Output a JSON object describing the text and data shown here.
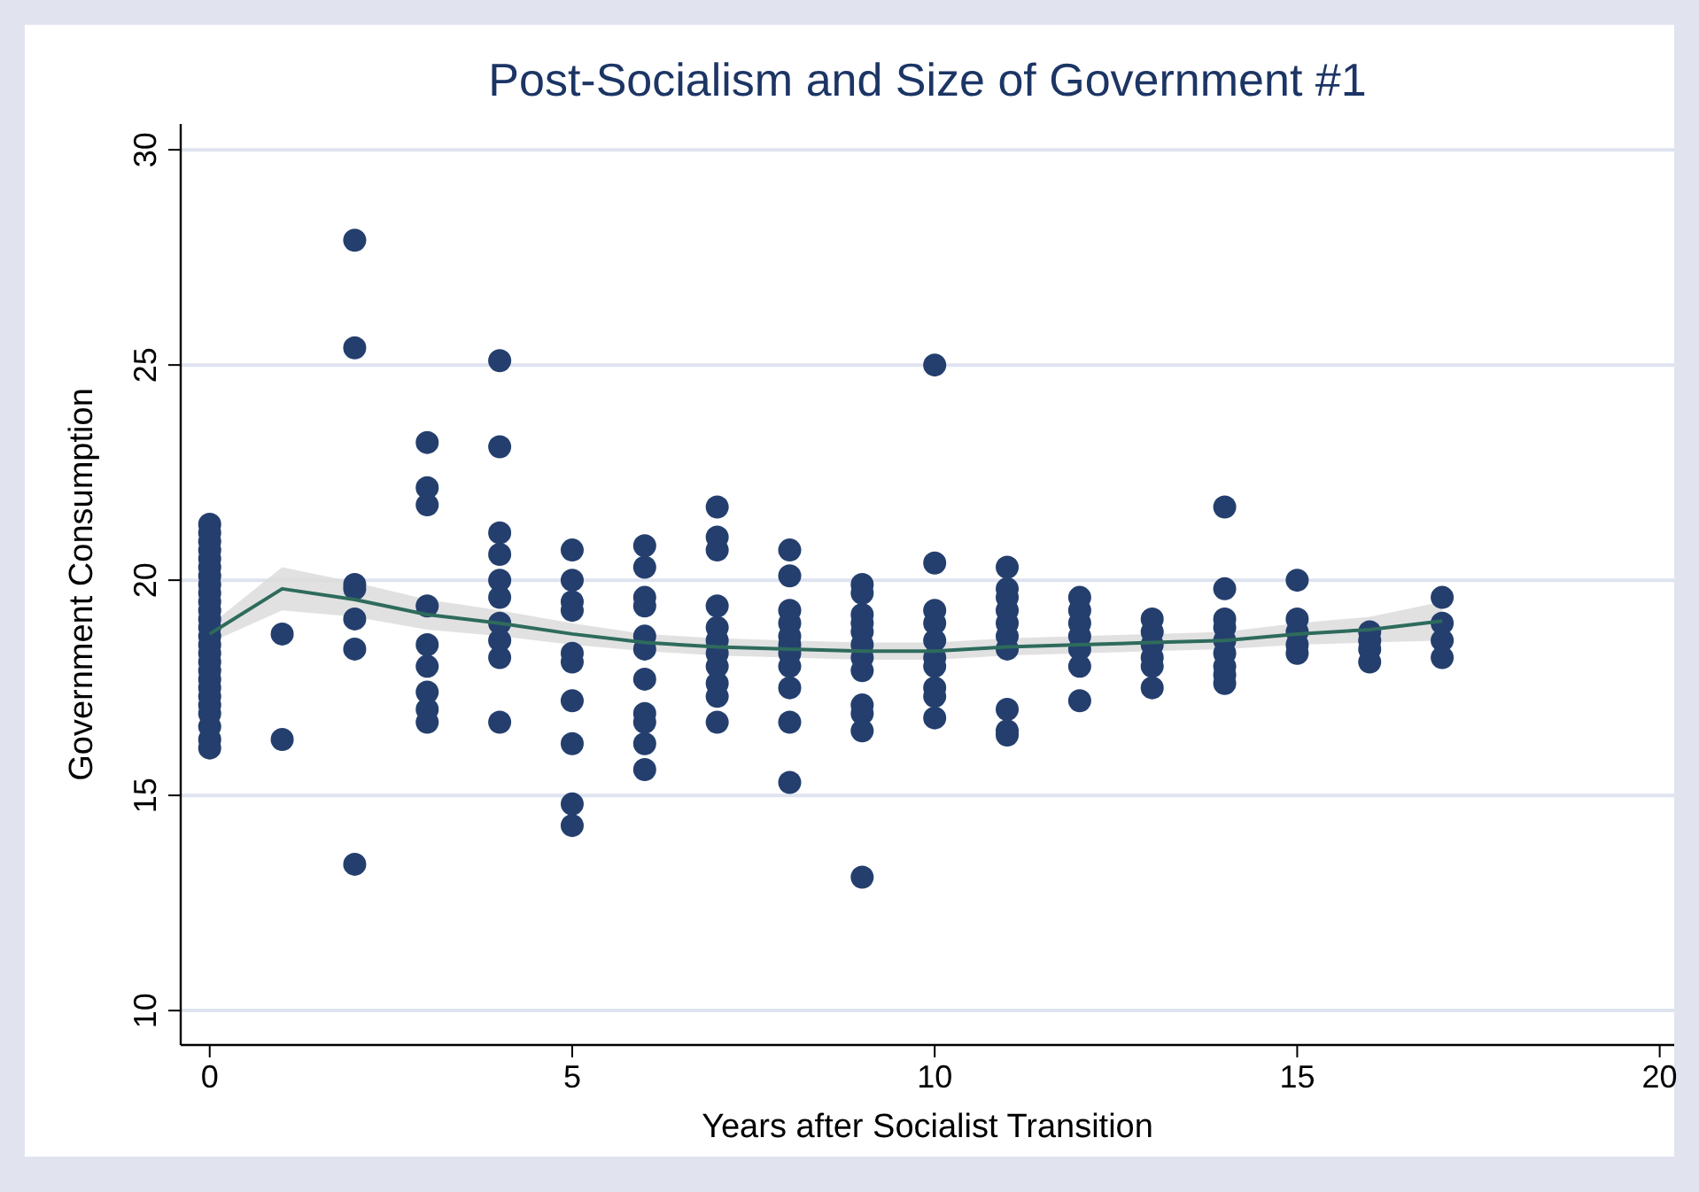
{
  "chart_data": {
    "type": "scatter",
    "title": "Post-Socialism and Size of Government #1",
    "xlabel": "Years after Socialist Transition",
    "ylabel": "Government Consumption",
    "xlim": [
      -0.4,
      20.2
    ],
    "xticks": [
      0,
      5,
      10,
      15,
      20
    ],
    "ylim": [
      9.2,
      30.6
    ],
    "yticks": [
      10,
      15,
      20,
      25,
      30
    ],
    "grid": "y",
    "series": [
      {
        "color": "#243f6e",
        "marker": "circle",
        "x": [
          0,
          0,
          0,
          0,
          0,
          0,
          0,
          0,
          0,
          0,
          0,
          0,
          0,
          0,
          0,
          0,
          0,
          0,
          0,
          0,
          0,
          0,
          0,
          0,
          0,
          0,
          1,
          1,
          2,
          2,
          2,
          2,
          2,
          2,
          2,
          3,
          3,
          3,
          3,
          3,
          3,
          3,
          3,
          3,
          4,
          4,
          4,
          4,
          4,
          4,
          4,
          4,
          4,
          4,
          5,
          5,
          5,
          5,
          5,
          5,
          5,
          5,
          5,
          5,
          6,
          6,
          6,
          6,
          6,
          6,
          6,
          6,
          6,
          6,
          6,
          7,
          7,
          7,
          7,
          7,
          7,
          7,
          7,
          7,
          7,
          7,
          8,
          8,
          8,
          8,
          8,
          8,
          8,
          8,
          8,
          8,
          8,
          9,
          9,
          9,
          9,
          9,
          9,
          9,
          9,
          9,
          9,
          9,
          9,
          10,
          10,
          10,
          10,
          10,
          10,
          10,
          10,
          10,
          10,
          11,
          11,
          11,
          11,
          11,
          11,
          11,
          11,
          11,
          11,
          12,
          12,
          12,
          12,
          12,
          12,
          12,
          13,
          13,
          13,
          13,
          13,
          13,
          14,
          14,
          14,
          14,
          14,
          14,
          14,
          14,
          14,
          15,
          15,
          15,
          15,
          15,
          16,
          16,
          16,
          16,
          17,
          17,
          17,
          17
        ],
        "values": [
          21.3,
          21.1,
          20.9,
          20.7,
          20.5,
          20.3,
          20.1,
          19.9,
          19.7,
          19.5,
          19.3,
          19.1,
          18.9,
          18.7,
          18.5,
          18.3,
          18.1,
          17.9,
          17.7,
          17.5,
          17.3,
          17.1,
          16.9,
          16.6,
          16.3,
          16.1,
          18.75,
          16.3,
          27.9,
          25.4,
          19.9,
          19.8,
          19.1,
          18.4,
          13.4,
          23.2,
          22.15,
          21.75,
          19.4,
          18.5,
          18.0,
          17.4,
          17.0,
          16.7,
          25.1,
          23.1,
          21.1,
          20.6,
          20.0,
          19.6,
          19.0,
          18.6,
          18.2,
          16.7,
          20.7,
          20.0,
          19.5,
          19.3,
          18.3,
          18.1,
          17.2,
          16.2,
          14.8,
          14.3,
          20.8,
          20.3,
          19.6,
          19.4,
          18.7,
          18.4,
          17.7,
          16.9,
          16.7,
          16.2,
          15.6,
          21.7,
          21.0,
          20.7,
          19.4,
          18.9,
          18.6,
          18.3,
          18.0,
          17.6,
          17.3,
          16.7,
          20.7,
          20.1,
          19.3,
          19.0,
          18.7,
          18.5,
          18.3,
          18.0,
          17.5,
          16.7,
          15.3,
          19.9,
          19.7,
          19.2,
          19.0,
          18.8,
          18.5,
          18.2,
          17.9,
          17.1,
          16.9,
          16.5,
          13.1,
          25.0,
          20.4,
          19.3,
          19.0,
          18.6,
          18.2,
          18.0,
          17.5,
          17.3,
          16.8,
          20.3,
          19.8,
          19.6,
          19.3,
          19.0,
          18.7,
          18.4,
          17.0,
          16.5,
          16.4,
          19.6,
          19.3,
          19.0,
          18.7,
          18.4,
          18.0,
          17.2,
          19.1,
          18.8,
          18.5,
          18.2,
          18.0,
          17.5,
          21.7,
          19.8,
          19.1,
          18.9,
          18.6,
          18.3,
          18.0,
          17.8,
          17.6,
          20.0,
          19.1,
          18.8,
          18.5,
          18.3,
          18.8,
          18.6,
          18.4,
          18.1,
          19.6,
          19.0,
          18.6,
          18.2
        ]
      },
      {
        "type": "line",
        "color": "#2e6b5c",
        "marker": "none",
        "line_style": "solid",
        "x": [
          0,
          1,
          2,
          3,
          4,
          5,
          6,
          7,
          8,
          9,
          10,
          11,
          12,
          13,
          14,
          15,
          16,
          17
        ],
        "values": [
          18.75,
          19.8,
          19.55,
          19.2,
          19.0,
          18.75,
          18.55,
          18.45,
          18.4,
          18.35,
          18.35,
          18.45,
          18.5,
          18.55,
          18.6,
          18.75,
          18.85,
          19.05
        ],
        "lower": [
          18.55,
          19.3,
          19.15,
          18.85,
          18.7,
          18.5,
          18.35,
          18.25,
          18.2,
          18.15,
          18.15,
          18.25,
          18.3,
          18.35,
          18.4,
          18.5,
          18.55,
          18.6
        ],
        "upper": [
          18.95,
          20.3,
          19.95,
          19.55,
          19.3,
          19.0,
          18.75,
          18.65,
          18.6,
          18.55,
          18.55,
          18.65,
          18.7,
          18.75,
          18.8,
          19.0,
          19.15,
          19.5
        ]
      }
    ]
  }
}
